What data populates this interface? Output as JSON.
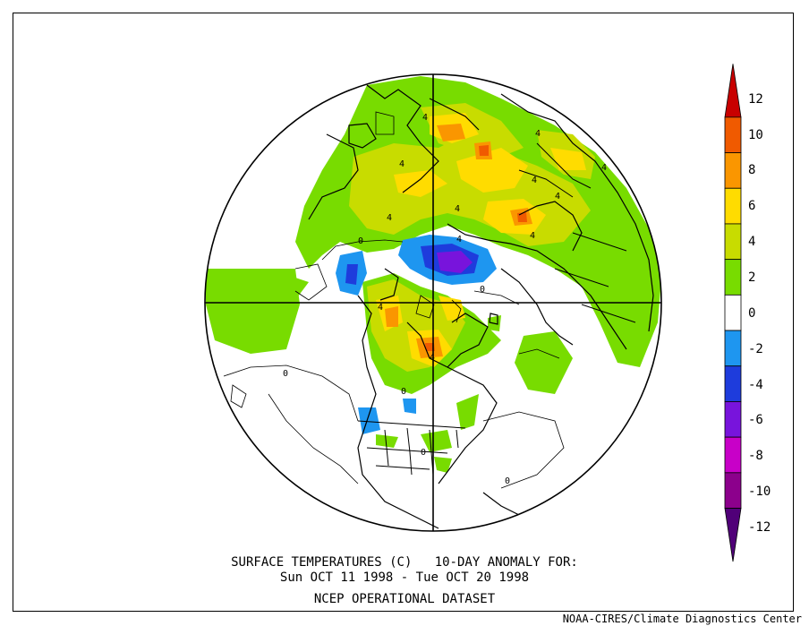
{
  "title": {
    "line1": "SURFACE TEMPERATURES (C)   10-DAY ANOMALY FOR:",
    "line2": "Sun OCT 11 1998 - Tue OCT 20 1998",
    "line3": "NCEP OPERATIONAL DATASET"
  },
  "credit": "NOAA-CIRES/Climate Diagnostics Center",
  "contour_labels": [
    "4",
    "4",
    "4",
    "4",
    "4",
    "4",
    "4",
    "4",
    "4",
    "4",
    "0",
    "0",
    "0",
    "0",
    "0",
    "0",
    "4",
    "4"
  ],
  "legend": {
    "labels": [
      "12",
      "10",
      "8",
      "6",
      "4",
      "2",
      "0",
      "-2",
      "-4",
      "-6",
      "-8",
      "-10",
      "-12"
    ],
    "colors": [
      "#c80000",
      "#f05a00",
      "#fa9600",
      "#ffdc00",
      "#c8dc00",
      "#78dc00",
      "#ffffff",
      "#1e96f0",
      "#1e3cdc",
      "#7814dc",
      "#c800c8",
      "#8c008c",
      "#500078"
    ]
  }
}
